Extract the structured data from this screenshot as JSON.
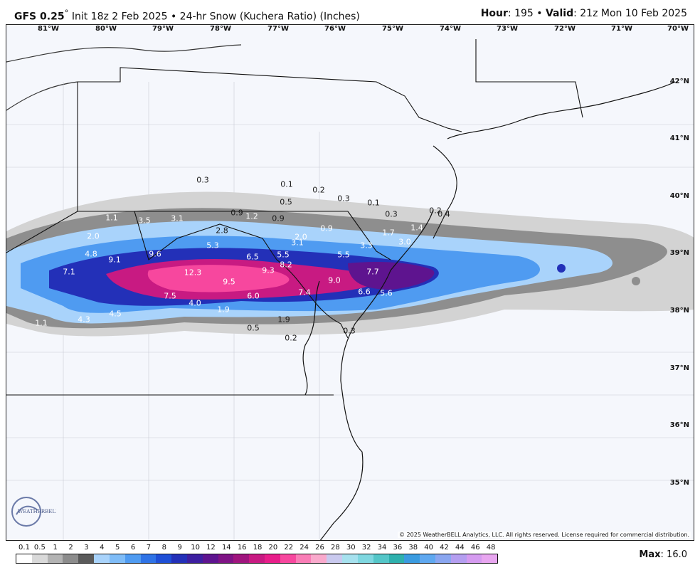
{
  "header": {
    "model": "GFS 0.25",
    "degree": "°",
    "init": "Init 18z 2 Feb 2025 • 24-hr Snow (Kuchera Ratio) (Inches)",
    "hour_label": "Hour",
    "hour_value": ": 195 • ",
    "valid_label": "Valid",
    "valid_value": ": 21z Mon 10 Feb 2025"
  },
  "longitudes": [
    "81°W",
    "80°W",
    "79°W",
    "78°W",
    "77°W",
    "76°W",
    "75°W",
    "74°W",
    "73°W",
    "72°W",
    "71°W",
    "70°W"
  ],
  "latitudes": [
    "42°N",
    "41°N",
    "40°N",
    "39°N",
    "38°N",
    "37°N",
    "36°N",
    "35°N"
  ],
  "snow_totals": [
    "0.3",
    "0.1",
    "0.2",
    "0.5",
    "0.3",
    "0.1",
    "0.3",
    "0.2",
    "0.4",
    "1.1",
    "3.5",
    "3.1",
    "0.9",
    "1.2",
    "0.9",
    "0.9",
    "2.8",
    "2.0",
    "3.1",
    "1.7",
    "1.4",
    "3.0",
    "3.3",
    "2.0",
    "4.8",
    "9.1",
    "9.6",
    "5.3",
    "6.5",
    "5.5",
    "5.5",
    "7.1",
    "12.3",
    "9.3",
    "8.2",
    "7.7",
    "9.5",
    "9.0",
    "7.5",
    "6.0",
    "7.4",
    "6.6",
    "5.6",
    "4.0",
    "1.9",
    "4.3",
    "4.5",
    "1.1",
    "0.5",
    "1.9",
    "0.3",
    "0.2"
  ],
  "legend": {
    "ticks": [
      "0.1",
      "0.5",
      "1",
      "2",
      "3",
      "4",
      "5",
      "6",
      "7",
      "8",
      "9",
      "10",
      "12",
      "14",
      "16",
      "18",
      "20",
      "22",
      "24",
      "26",
      "28",
      "30",
      "32",
      "34",
      "36",
      "38",
      "40",
      "42",
      "44",
      "46",
      "48"
    ],
    "colors": [
      "#ffffff",
      "#d9d9d9",
      "#b3b3b3",
      "#8c8c8c",
      "#5a5a5a",
      "#a9d3fb",
      "#7fbcf7",
      "#4f9bf1",
      "#2f73e6",
      "#1f4fd6",
      "#2330b8",
      "#3d1fa0",
      "#5e148f",
      "#7f1385",
      "#a0157e",
      "#c81a82",
      "#e81e8a",
      "#f7479e",
      "#f97db6",
      "#f9a9cc",
      "#c9c9ee",
      "#a6e1ee",
      "#7fd7e0",
      "#54c6c8",
      "#2eb0ad",
      "#3a9be0",
      "#5fa8f0",
      "#8aa6f0",
      "#b49ef0",
      "#d59bf0",
      "#e8a6f0"
    ],
    "max_label": "Max",
    "max_value": ": 16.0"
  },
  "copyright": "© 2025 WeatherBELL Analytics, LLC. All rights reserved. License required for commercial distribution.",
  "logo_text": "WEATHERBELL"
}
